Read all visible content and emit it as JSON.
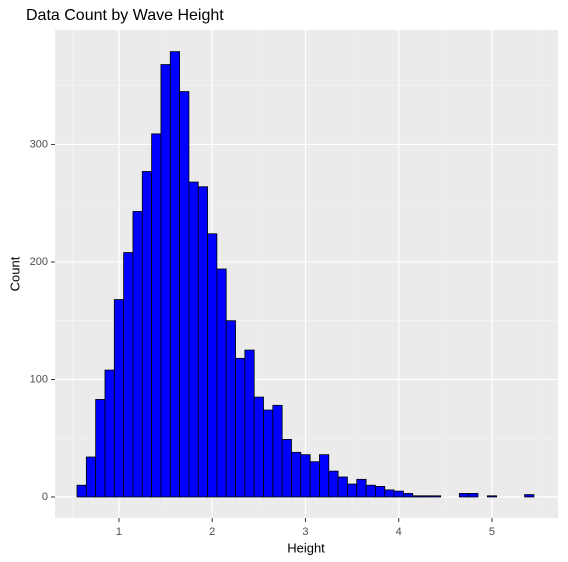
{
  "chart_data": {
    "type": "histogram",
    "title": "Data Count by Wave Height",
    "x_label": "Height",
    "y_label": "Count",
    "bins": [
      0.55,
      0.65,
      0.75,
      0.85,
      0.95,
      1.05,
      1.15,
      1.25,
      1.35,
      1.45,
      1.55,
      1.65,
      1.75,
      1.85,
      1.95,
      2.05,
      2.15,
      2.25,
      2.35,
      2.45,
      2.55,
      2.65,
      2.75,
      2.85,
      2.95,
      3.05,
      3.15,
      3.25,
      3.35,
      3.45,
      3.55,
      3.65,
      3.75,
      3.85,
      3.95,
      4.05,
      4.15,
      4.25,
      4.35,
      4.45,
      4.55,
      4.65,
      4.75,
      4.85,
      4.95,
      5.05,
      5.15,
      5.25,
      5.35,
      5.45
    ],
    "values": [
      10,
      34,
      83,
      108,
      168,
      208,
      243,
      277,
      309,
      368,
      379,
      345,
      268,
      264,
      224,
      194,
      150,
      118,
      125,
      85,
      74,
      78,
      49,
      38,
      36,
      30,
      36,
      22,
      17,
      11,
      15,
      10,
      9,
      6,
      5,
      3,
      1,
      1,
      1,
      0,
      0,
      3,
      3,
      0,
      1,
      0,
      0,
      0,
      2
    ],
    "color": "#0000ff",
    "edge_color": "#000000",
    "xlim": [
      0.314,
      5.708
    ],
    "ylim": [
      -17.9,
      397.4
    ],
    "xticks": [
      1,
      2,
      3,
      4,
      5
    ],
    "yticks": [
      0,
      100,
      200,
      300
    ],
    "grid": true
  }
}
